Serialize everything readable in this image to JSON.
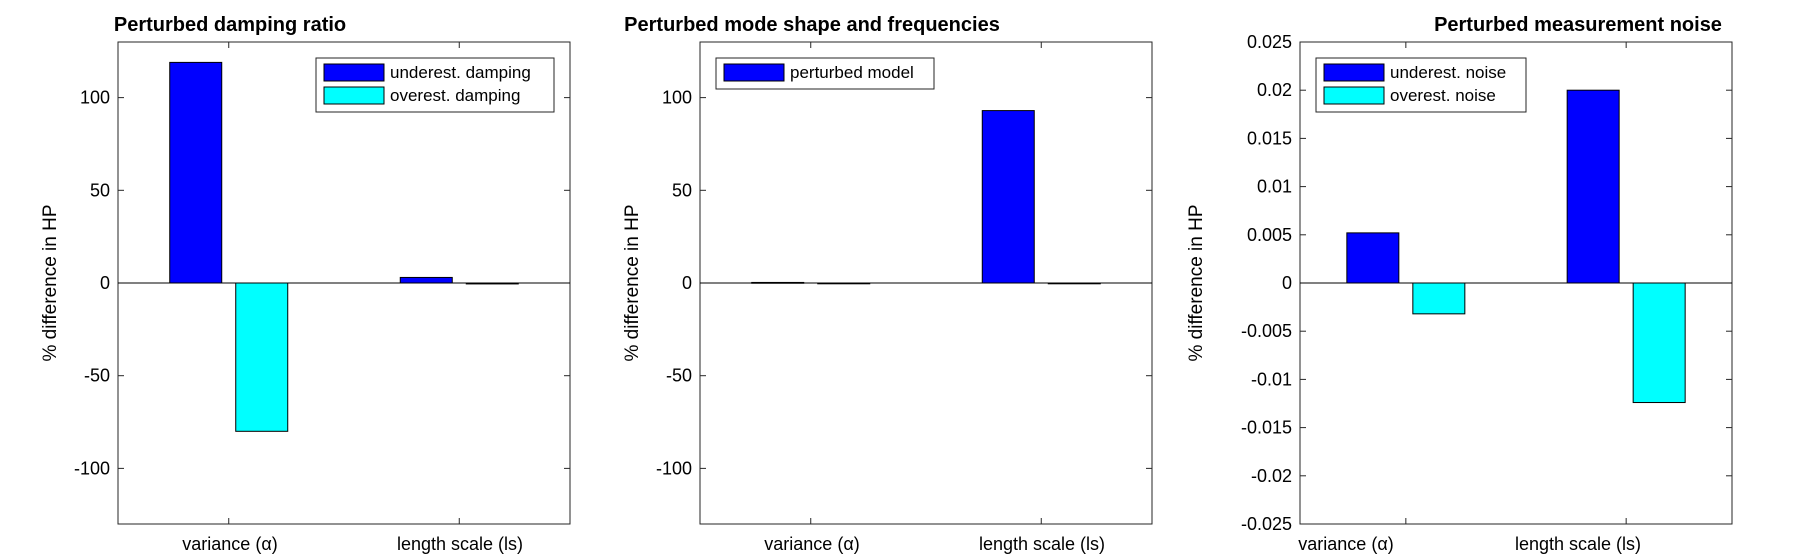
{
  "chart_data": [
    {
      "type": "bar",
      "title": "Perturbed damping ratio",
      "ylabel": "% difference in HP",
      "categories": [
        "variance (α)",
        "length scale (ls)"
      ],
      "ylim": [
        -130,
        130
      ],
      "yticks": [
        -100,
        -50,
        0,
        50,
        100
      ],
      "ytick_labels": [
        "-100",
        "-50",
        "0",
        "50",
        "100"
      ],
      "legend_position": "top-right",
      "series": [
        {
          "name": "underest. damping",
          "color": "#0000ff",
          "values": [
            119,
            3
          ]
        },
        {
          "name": "overest. damping",
          "color": "#00ffff",
          "values": [
            -80,
            -0.5
          ]
        }
      ]
    },
    {
      "type": "bar",
      "title": "Perturbed mode shape and frequencies",
      "ylabel": "% difference in HP",
      "categories": [
        "variance (α)",
        "length scale (ls)"
      ],
      "ylim": [
        -130,
        130
      ],
      "yticks": [
        -100,
        -50,
        0,
        50,
        100
      ],
      "ytick_labels": [
        "-100",
        "-50",
        "0",
        "50",
        "100"
      ],
      "legend_position": "top-left",
      "series": [
        {
          "name": "perturbed model",
          "color": "#0000ff",
          "values": [
            0.3,
            93
          ]
        },
        {
          "name": "",
          "color": "#00ffff",
          "values": [
            0,
            0
          ],
          "in_legend": false
        }
      ]
    },
    {
      "type": "bar",
      "title": "Perturbed measurement noise",
      "ylabel": "% difference in HP",
      "categories": [
        "variance (α)",
        "length scale (ls)"
      ],
      "ylim": [
        -0.025,
        0.025
      ],
      "yticks": [
        -0.025,
        -0.02,
        -0.015,
        -0.01,
        -0.005,
        0,
        0.005,
        0.01,
        0.015,
        0.02,
        0.025
      ],
      "ytick_labels": [
        "-0.025",
        "-0.02",
        "-0.015",
        "-0.01",
        "-0.005",
        "0",
        "0.005",
        "0.01",
        "0.015",
        "0.02",
        "0.025"
      ],
      "legend_position": "top-left",
      "series": [
        {
          "name": "underest. noise",
          "color": "#0000ff",
          "values": [
            0.0052,
            0.02
          ]
        },
        {
          "name": "overest. noise",
          "color": "#00ffff",
          "values": [
            -0.0032,
            -0.0124
          ]
        }
      ]
    }
  ]
}
